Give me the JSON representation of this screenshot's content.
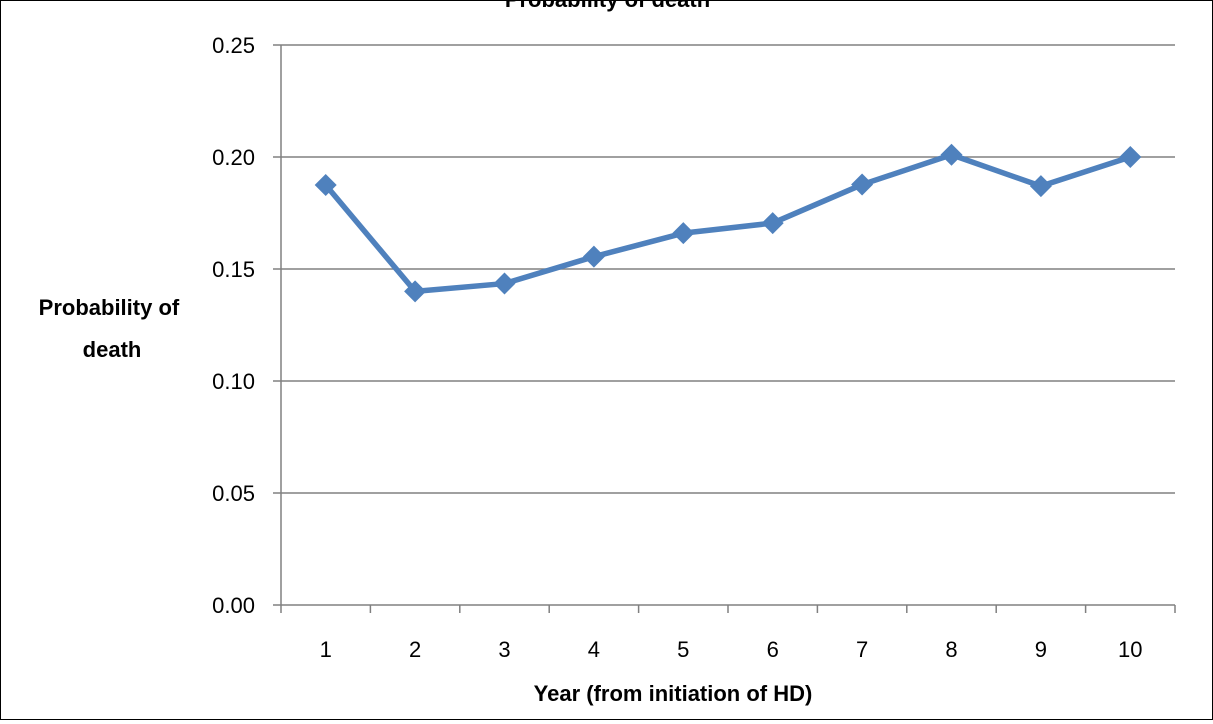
{
  "chart_data": {
    "type": "line",
    "title": "Probability of death",
    "xlabel": "Year (from initiation of HD)",
    "ylabel_lines": [
      "Probability of",
      "death"
    ],
    "categories": [
      "1",
      "2",
      "3",
      "4",
      "5",
      "6",
      "7",
      "8",
      "9",
      "10"
    ],
    "series": [
      {
        "values": [
          0.1875,
          0.14,
          0.1435,
          0.1555,
          0.166,
          0.1705,
          0.1877,
          0.201,
          0.187,
          0.2
        ],
        "color": "#4F81BD"
      }
    ],
    "ylim": [
      0,
      0.25
    ],
    "yticks": [
      "0.00",
      "0.05",
      "0.10",
      "0.15",
      "0.20",
      "0.25"
    ],
    "grid": true,
    "legend": false
  }
}
